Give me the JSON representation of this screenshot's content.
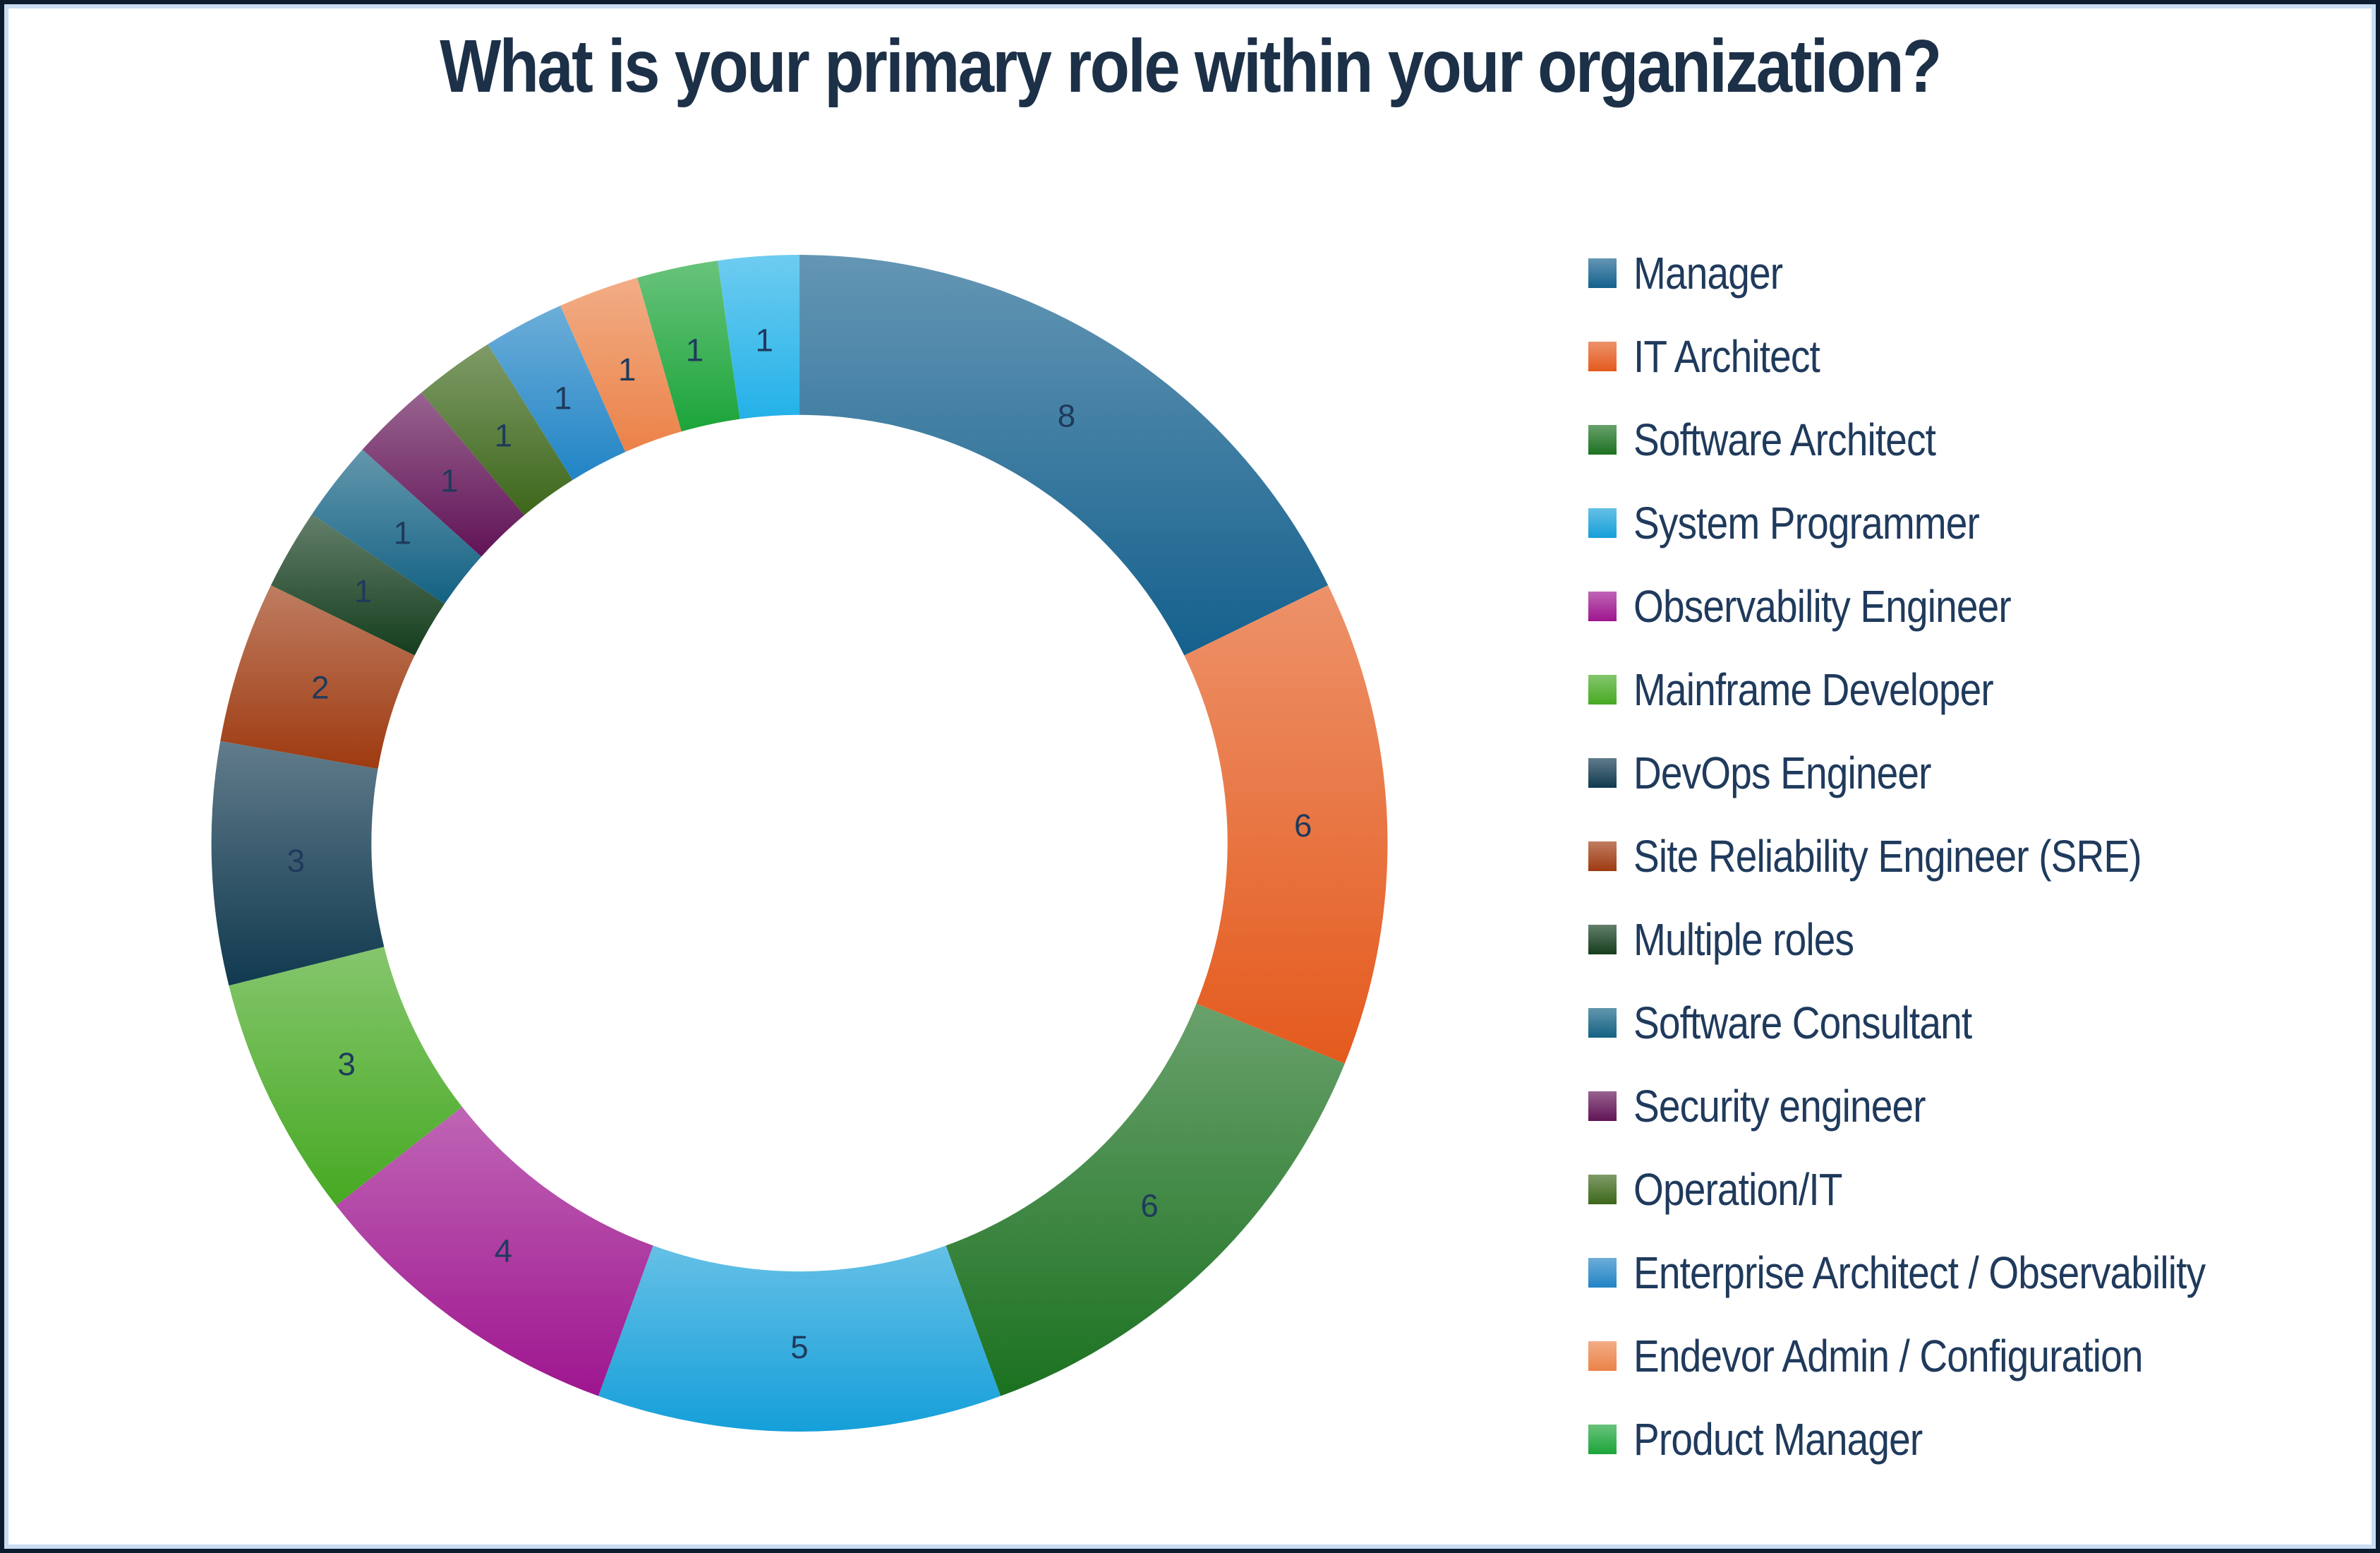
{
  "title": {
    "text": "What is your primary role within your organization?",
    "color": "#1C3048"
  },
  "frame": {
    "outer_border_color": "#0D1B2E",
    "inner_border_color": "#C9DDF2",
    "background": "#FFFFFF"
  },
  "chart_data": {
    "type": "pie",
    "subtype": "donut",
    "title": "What is your primary role within your organization?",
    "legend_position": "right",
    "start": "12 o'clock, clockwise",
    "total": 45,
    "label_color": "#1F3A5C",
    "slices": [
      {
        "label": "Manager",
        "value": 8,
        "color": "#14608D",
        "in_legend": true
      },
      {
        "label": "IT Architect",
        "value": 6,
        "color": "#E45A1D",
        "in_legend": true
      },
      {
        "label": "Software Architect",
        "value": 6,
        "color": "#1B7120",
        "in_legend": true
      },
      {
        "label": "System Programmer",
        "value": 5,
        "color": "#159FD9",
        "in_legend": true
      },
      {
        "label": "Observability Engineer",
        "value": 4,
        "color": "#9E158F",
        "in_legend": true
      },
      {
        "label": "Mainframe Developer",
        "value": 3,
        "color": "#46A922",
        "in_legend": true
      },
      {
        "label": "DevOps Engineer",
        "value": 3,
        "color": "#10394F",
        "in_legend": true
      },
      {
        "label": "Site Reliability Engineer (SRE)",
        "value": 2,
        "color": "#9E3A10",
        "in_legend": true
      },
      {
        "label": "Multiple roles",
        "value": 1,
        "color": "#143D1D",
        "in_legend": true
      },
      {
        "label": "Software Consultant",
        "value": 1,
        "color": "#136183",
        "in_legend": true
      },
      {
        "label": "Security engineer",
        "value": 1,
        "color": "#611356",
        "in_legend": true
      },
      {
        "label": "Operation/IT",
        "value": 1,
        "color": "#3D671A",
        "in_legend": true
      },
      {
        "label": "Enterprise Architect / Observability",
        "value": 1,
        "color": "#2184C5",
        "in_legend": true
      },
      {
        "label": "Endevor Admin / Configuration",
        "value": 1,
        "color": "#EB8248",
        "in_legend": true
      },
      {
        "label": "Product Manager",
        "value": 1,
        "color": "#1BA439",
        "in_legend": true
      },
      {
        "label": "",
        "value": 1,
        "color": "#23B1E8",
        "in_legend": false
      }
    ]
  }
}
